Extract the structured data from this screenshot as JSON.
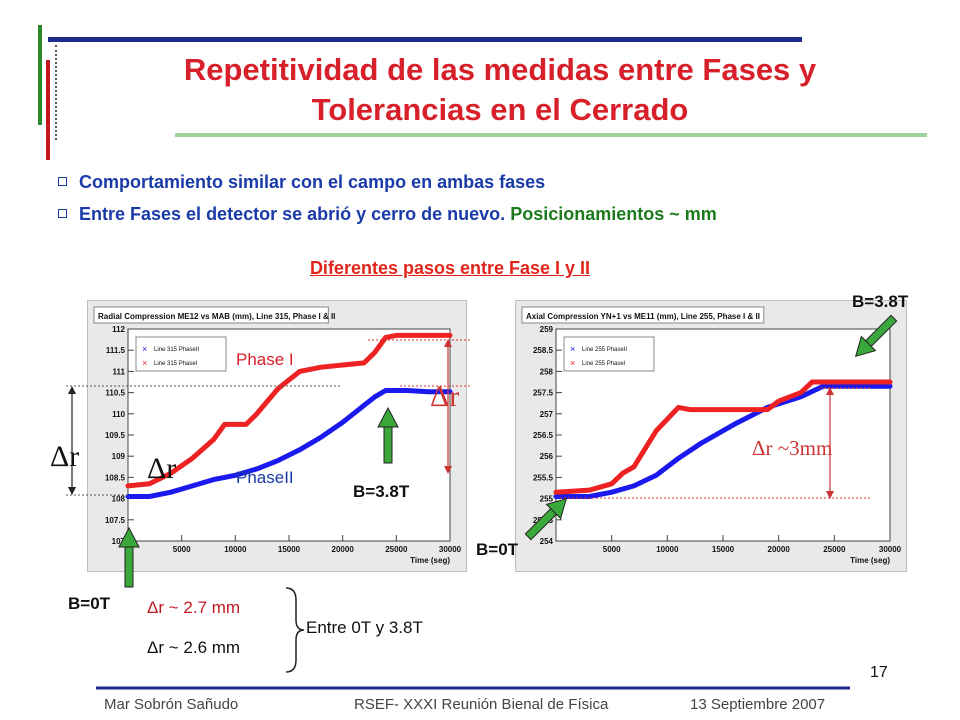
{
  "slide": {
    "title_line1": "Repetitividad de las medidas entre Fases y",
    "title_line2": "Tolerancias en el Cerrado",
    "bullet1": "Comportamiento similar con el campo en ambas fases",
    "bullet2_main": "Entre Fases el detector se abrió y cerro de nuevo.",
    "bullet2_green": "Posicionamientos ~ mm",
    "subtitle": "Diferentes pasos entre Fase I y II",
    "page_number": "17",
    "footer_author": "Mar Sobrón Sañudo",
    "footer_event": "RSEF- XXXI Reunión Bienal de Física",
    "footer_date": "13 Septiembre 2007"
  },
  "left_annotations": {
    "phase1": "Phase I",
    "phase2": "PhaseII",
    "delta_left": "Δr",
    "delta_mid": "Δr",
    "delta_right": "Δr",
    "b_high": "B=3.8T",
    "b_low": "B=0T",
    "stat1": "Δr ~ 2.7 mm",
    "stat2": "Δr ~ 2.6 mm",
    "brace_label": "Entre 0T y 3.8T"
  },
  "right_annotations": {
    "b_high": "B=3.8T",
    "b_low": "B=0T",
    "delta": "Δr ~3mm"
  },
  "colors": {
    "red_series": "#ee2222",
    "blue_series": "#1a1aee",
    "accent_green": "#1c7a1c",
    "title_red": "#d8202a"
  },
  "chart_data": [
    {
      "type": "line",
      "title": "Radial Compression ME12 vs MAB (mm), Line 315, Phase I & II",
      "xlabel": "Time (seg)",
      "ylabel": "",
      "xlim": [
        0,
        30000
      ],
      "ylim": [
        107,
        112
      ],
      "x_ticks": [
        "5000",
        "10000",
        "15000",
        "20000",
        "25000",
        "30000"
      ],
      "y_ticks": [
        "107",
        "107.5",
        "108",
        "108.5",
        "109",
        "109.5",
        "110",
        "110.5",
        "111",
        "111.5",
        "112"
      ],
      "series": [
        {
          "name": "Line 315 PhaseII",
          "color": "#1a1aee",
          "x": [
            0,
            2000,
            4000,
            6000,
            8000,
            10000,
            12000,
            14000,
            16000,
            18000,
            20000,
            22000,
            23000,
            24000,
            26000,
            28000,
            30000
          ],
          "y": [
            108.05,
            108.05,
            108.15,
            108.3,
            108.45,
            108.55,
            108.7,
            108.9,
            109.15,
            109.45,
            109.8,
            110.2,
            110.4,
            110.55,
            110.55,
            110.52,
            110.52
          ]
        },
        {
          "name": "Line 315 PhaseI",
          "color": "#ee2222",
          "x": [
            0,
            2000,
            4000,
            6000,
            8000,
            9000,
            11000,
            12000,
            14000,
            16000,
            18000,
            20000,
            22000,
            23000,
            24000,
            25000,
            27000,
            30000
          ],
          "y": [
            108.3,
            108.35,
            108.6,
            108.95,
            109.4,
            109.75,
            109.75,
            110.0,
            110.6,
            111.0,
            111.1,
            111.15,
            111.2,
            111.45,
            111.8,
            111.85,
            111.85,
            111.85
          ]
        }
      ]
    },
    {
      "type": "line",
      "title": "Axial Compression YN+1 vs ME11 (mm), Line 255, Phase I & II",
      "xlabel": "Time (seg)",
      "ylabel": "",
      "xlim": [
        0,
        30000
      ],
      "ylim": [
        254,
        259
      ],
      "x_ticks": [
        "5000",
        "10000",
        "15000",
        "20000",
        "25000",
        "30000"
      ],
      "y_ticks": [
        "254",
        "254.5",
        "255",
        "255.5",
        "256",
        "256.5",
        "257",
        "257.5",
        "258",
        "258.5",
        "259"
      ],
      "series": [
        {
          "name": "Line 255 PhaseII",
          "color": "#1a1aee",
          "x": [
            0,
            3000,
            5000,
            7000,
            9000,
            11000,
            13000,
            16000,
            19000,
            22000,
            24000,
            26000,
            30000
          ],
          "y": [
            255.05,
            255.05,
            255.15,
            255.3,
            255.55,
            255.95,
            256.3,
            256.75,
            257.15,
            257.4,
            257.65,
            257.65,
            257.65
          ]
        },
        {
          "name": "Line 255 PhaseI",
          "color": "#ee2222",
          "x": [
            0,
            3000,
            5000,
            6000,
            7000,
            9000,
            11000,
            12000,
            18000,
            19000,
            20000,
            22000,
            23000,
            24000,
            26000,
            30000
          ],
          "y": [
            255.15,
            255.2,
            255.35,
            255.6,
            255.75,
            256.6,
            257.15,
            257.1,
            257.1,
            257.1,
            257.3,
            257.5,
            257.75,
            257.75,
            257.75,
            257.75
          ]
        }
      ]
    }
  ]
}
